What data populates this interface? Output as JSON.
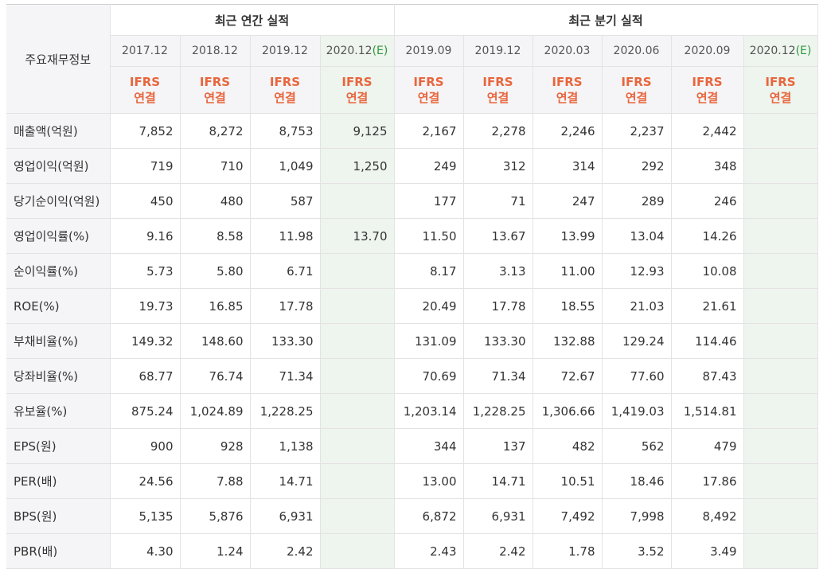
{
  "header": {
    "row_title": "주요재무정보",
    "annual_group": "최근 연간 실적",
    "quarterly_group": "최근 분기 실적",
    "annual_periods": [
      {
        "label": "2017.12",
        "est_suffix": ""
      },
      {
        "label": "2018.12",
        "est_suffix": ""
      },
      {
        "label": "2019.12",
        "est_suffix": ""
      },
      {
        "label": "2020.12",
        "est_suffix": "(E)"
      }
    ],
    "quarterly_periods": [
      {
        "label": "2019.09",
        "est_suffix": ""
      },
      {
        "label": "2019.12",
        "est_suffix": ""
      },
      {
        "label": "2020.03",
        "est_suffix": ""
      },
      {
        "label": "2020.06",
        "est_suffix": ""
      },
      {
        "label": "2020.09",
        "est_suffix": ""
      },
      {
        "label": "2020.12",
        "est_suffix": "(E)"
      }
    ],
    "ifrs_line1": "IFRS",
    "ifrs_line2": "연결"
  },
  "rows": [
    {
      "label": "매출액(억원)",
      "annual": [
        "7,852",
        "8,272",
        "8,753",
        "9,125"
      ],
      "quarterly": [
        "2,167",
        "2,278",
        "2,246",
        "2,237",
        "2,442",
        ""
      ]
    },
    {
      "label": "영업이익(억원)",
      "annual": [
        "719",
        "710",
        "1,049",
        "1,250"
      ],
      "quarterly": [
        "249",
        "312",
        "314",
        "292",
        "348",
        ""
      ]
    },
    {
      "label": "당기순이익(억원)",
      "annual": [
        "450",
        "480",
        "587",
        ""
      ],
      "quarterly": [
        "177",
        "71",
        "247",
        "289",
        "246",
        ""
      ]
    },
    {
      "label": "영업이익률(%)",
      "annual": [
        "9.16",
        "8.58",
        "11.98",
        "13.70"
      ],
      "quarterly": [
        "11.50",
        "13.67",
        "13.99",
        "13.04",
        "14.26",
        ""
      ]
    },
    {
      "label": "순이익률(%)",
      "annual": [
        "5.73",
        "5.80",
        "6.71",
        ""
      ],
      "quarterly": [
        "8.17",
        "3.13",
        "11.00",
        "12.93",
        "10.08",
        ""
      ]
    },
    {
      "label": "ROE(%)",
      "annual": [
        "19.73",
        "16.85",
        "17.78",
        ""
      ],
      "quarterly": [
        "20.49",
        "17.78",
        "18.55",
        "21.03",
        "21.61",
        ""
      ]
    },
    {
      "label": "부채비율(%)",
      "annual": [
        "149.32",
        "148.60",
        "133.30",
        ""
      ],
      "quarterly": [
        "131.09",
        "133.30",
        "132.88",
        "129.24",
        "114.46",
        ""
      ]
    },
    {
      "label": "당좌비율(%)",
      "annual": [
        "68.77",
        "76.74",
        "71.34",
        ""
      ],
      "quarterly": [
        "70.69",
        "71.34",
        "72.67",
        "77.60",
        "87.43",
        ""
      ]
    },
    {
      "label": "유보율(%)",
      "annual": [
        "875.24",
        "1,024.89",
        "1,228.25",
        ""
      ],
      "quarterly": [
        "1,203.14",
        "1,228.25",
        "1,306.66",
        "1,419.03",
        "1,514.81",
        ""
      ]
    },
    {
      "label": "EPS(원)",
      "annual": [
        "900",
        "928",
        "1,138",
        ""
      ],
      "quarterly": [
        "344",
        "137",
        "482",
        "562",
        "479",
        ""
      ]
    },
    {
      "label": "PER(배)",
      "annual": [
        "24.56",
        "7.88",
        "14.71",
        ""
      ],
      "quarterly": [
        "13.00",
        "14.71",
        "10.51",
        "18.46",
        "17.86",
        ""
      ]
    },
    {
      "label": "BPS(원)",
      "annual": [
        "5,135",
        "5,876",
        "6,931",
        ""
      ],
      "quarterly": [
        "6,872",
        "6,931",
        "7,492",
        "7,998",
        "8,492",
        ""
      ]
    },
    {
      "label": "PBR(배)",
      "annual": [
        "4.30",
        "1.24",
        "2.42",
        ""
      ],
      "quarterly": [
        "2.43",
        "2.42",
        "1.78",
        "3.52",
        "3.49",
        ""
      ]
    }
  ],
  "colors": {
    "ifrs_text": "#e8663d",
    "estimate_bg": "#eef4ee",
    "estimate_suffix": "#2d9a3a",
    "header_bg": "#f5f5f7"
  }
}
